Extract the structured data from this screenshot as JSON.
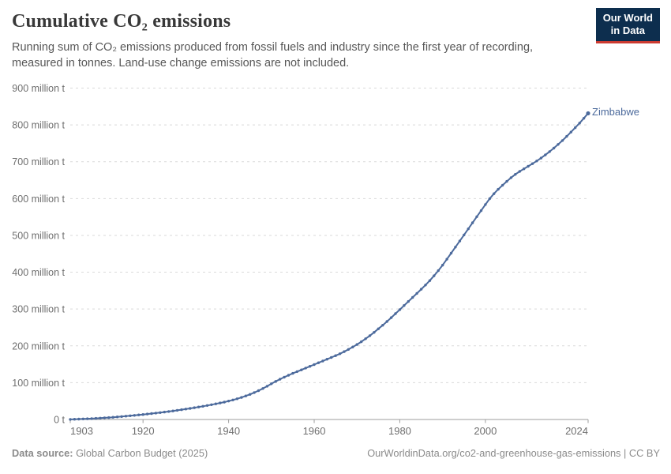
{
  "header": {
    "title": "Cumulative CO₂ emissions",
    "subtitle": "Running sum of CO₂ emissions produced from fossil fuels and industry since the first year of recording, measured in tonnes. Land-use change emissions are not included.",
    "logo": {
      "line1": "Our World",
      "line2": "in Data",
      "bg_color": "#0d2e4e",
      "accent_color": "#cc3b31"
    }
  },
  "chart_data": {
    "type": "line",
    "title": "Cumulative CO₂ emissions",
    "xlabel": "",
    "ylabel": "",
    "unit": "t",
    "xlim": [
      1903,
      2024
    ],
    "ylim": [
      0,
      900000000
    ],
    "ylim_display_millions": [
      0,
      900
    ],
    "grid": "dashed horizontal gridlines every 100 million t",
    "legend_position": "end-of-line label",
    "x_ticks": [
      1903,
      1920,
      1940,
      1960,
      1980,
      2000,
      2024
    ],
    "y_ticks": [
      {
        "value": 0,
        "label": "0 t"
      },
      {
        "value": 100,
        "label": "100 million t"
      },
      {
        "value": 200,
        "label": "200 million t"
      },
      {
        "value": 300,
        "label": "300 million t"
      },
      {
        "value": 400,
        "label": "400 million t"
      },
      {
        "value": 500,
        "label": "500 million t"
      },
      {
        "value": 600,
        "label": "600 million t"
      },
      {
        "value": 700,
        "label": "700 million t"
      },
      {
        "value": 800,
        "label": "800 million t"
      },
      {
        "value": 900,
        "label": "900 million t"
      }
    ],
    "series": [
      {
        "name": "Zimbabwe",
        "color": "#4C6A9C",
        "units": "million t (cumulative)",
        "x": [
          1903,
          1904,
          1905,
          1906,
          1907,
          1908,
          1909,
          1910,
          1911,
          1912,
          1913,
          1914,
          1915,
          1916,
          1917,
          1918,
          1919,
          1920,
          1921,
          1922,
          1923,
          1924,
          1925,
          1926,
          1927,
          1928,
          1929,
          1930,
          1931,
          1932,
          1933,
          1934,
          1935,
          1936,
          1937,
          1938,
          1939,
          1940,
          1941,
          1942,
          1943,
          1944,
          1945,
          1946,
          1947,
          1948,
          1949,
          1950,
          1951,
          1952,
          1953,
          1954,
          1955,
          1956,
          1957,
          1958,
          1959,
          1960,
          1961,
          1962,
          1963,
          1964,
          1965,
          1966,
          1967,
          1968,
          1969,
          1970,
          1971,
          1972,
          1973,
          1974,
          1975,
          1976,
          1977,
          1978,
          1979,
          1980,
          1981,
          1982,
          1983,
          1984,
          1985,
          1986,
          1987,
          1988,
          1989,
          1990,
          1991,
          1992,
          1993,
          1994,
          1995,
          1996,
          1997,
          1998,
          1999,
          2000,
          2001,
          2002,
          2003,
          2004,
          2005,
          2006,
          2007,
          2008,
          2009,
          2010,
          2011,
          2012,
          2013,
          2014,
          2015,
          2016,
          2017,
          2018,
          2019,
          2020,
          2021,
          2022,
          2023,
          2024
        ],
        "values": [
          0.3,
          0.6,
          1.0,
          1.4,
          1.9,
          2.4,
          3.0,
          3.7,
          4.4,
          5.2,
          6.1,
          7.0,
          8.0,
          9.0,
          10.1,
          11.2,
          12.4,
          13.6,
          14.8,
          16.0,
          17.3,
          18.7,
          20.1,
          21.6,
          23.2,
          24.8,
          26.5,
          28.3,
          30.1,
          31.9,
          33.8,
          35.8,
          37.9,
          40.1,
          42.4,
          44.8,
          47.3,
          50.0,
          53.0,
          56.3,
          59.9,
          63.9,
          68.3,
          73.1,
          78.4,
          84.2,
          90.4,
          96.9,
          103.5,
          109.5,
          115.0,
          120.2,
          125.2,
          130.0,
          134.8,
          139.6,
          144.4,
          149.2,
          154.0,
          158.8,
          163.6,
          168.4,
          173.4,
          178.6,
          184.2,
          190.2,
          196.7,
          203.7,
          211.2,
          219.2,
          227.7,
          236.7,
          246.2,
          256.0,
          266.0,
          276.5,
          287.5,
          298.5,
          309.5,
          320.5,
          331.5,
          342.5,
          353.7,
          365.2,
          377.2,
          390.2,
          404.2,
          419.2,
          435.2,
          451.7,
          468.2,
          484.7,
          501.2,
          517.7,
          534.2,
          550.7,
          567.2,
          583.7,
          599.7,
          613.2,
          625.2,
          636.2,
          646.7,
          656.7,
          665.7,
          673.7,
          680.7,
          687.7,
          694.7,
          702.0,
          710.0,
          718.5,
          727.5,
          737.0,
          747.0,
          757.5,
          769.0,
          780.5,
          792.5,
          805.0,
          818.0,
          831.5
        ]
      }
    ],
    "colors": {
      "line": "#4C6A9C",
      "gridline": "#d9d9d9",
      "axis": "#9e9e9e",
      "tick_label": "#6f6f6f"
    }
  },
  "footer": {
    "source_label": "Data source:",
    "source_text": " Global Carbon Budget (2025)",
    "right_text": "OurWorldinData.org/co2-and-greenhouse-gas-emissions | CC BY"
  }
}
